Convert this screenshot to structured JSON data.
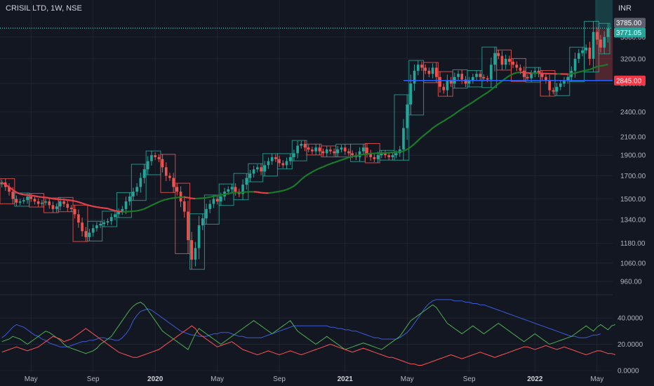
{
  "header": {
    "title": "CRISIL LTD, 1W, NSE",
    "currency": "INR"
  },
  "colors": {
    "background": "#131722",
    "grid": "#1f2431",
    "up": "#26a69a",
    "down": "#ef5350",
    "blue": "#2962ff",
    "green_ma": "#1b7a2a",
    "red_ma": "#e8404a",
    "sma_line": "#2196f3",
    "dmi_plus": "#4caf50",
    "dmi_minus": "#ff5252",
    "adx": "#3b5bdb"
  },
  "chart_data": [
    {
      "type": "candlestick",
      "title": "CRISIL LTD, 1W, NSE",
      "currency": "INR",
      "y_scale": "log",
      "ylim": [
        900,
        4000
      ],
      "y_ticks": [
        960,
        1060,
        1180,
        1340,
        1500,
        1700,
        1900,
        2100,
        2400,
        2800,
        3200,
        3600
      ],
      "y_tick_labels": [
        "960.00",
        "1060.00",
        "1180.00",
        "1340.00",
        "1500.00",
        "1700.00",
        "1900.00",
        "2100.00",
        "2400.00",
        "2800.00",
        "3200.00",
        "3600.00"
      ],
      "x_labels": [
        {
          "label": "May",
          "index": 8,
          "bold": false
        },
        {
          "label": "Sep",
          "index": 25,
          "bold": false
        },
        {
          "label": "2020",
          "index": 42,
          "bold": true
        },
        {
          "label": "May",
          "index": 59,
          "bold": false
        },
        {
          "label": "Sep",
          "index": 76,
          "bold": false
        },
        {
          "label": "2021",
          "index": 94,
          "bold": true
        },
        {
          "label": "May",
          "index": 111,
          "bold": false
        },
        {
          "label": "Sep",
          "index": 128,
          "bold": false
        },
        {
          "label": "2022",
          "index": 146,
          "bold": true
        },
        {
          "label": "May",
          "index": 163,
          "bold": false
        }
      ],
      "closes": [
        1640,
        1600,
        1560,
        1500,
        1470,
        1480,
        1490,
        1520,
        1500,
        1480,
        1460,
        1470,
        1480,
        1450,
        1420,
        1440,
        1480,
        1460,
        1430,
        1420,
        1380,
        1320,
        1260,
        1220,
        1250,
        1280,
        1300,
        1310,
        1320,
        1330,
        1360,
        1380,
        1400,
        1420,
        1480,
        1520,
        1560,
        1600,
        1680,
        1760,
        1840,
        1900,
        1880,
        1860,
        1780,
        1700,
        1680,
        1600,
        1560,
        1480,
        1400,
        1200,
        1080,
        1150,
        1300,
        1350,
        1420,
        1460,
        1500,
        1480,
        1520,
        1560,
        1580,
        1600,
        1560,
        1540,
        1620,
        1680,
        1720,
        1760,
        1780,
        1740,
        1800,
        1840,
        1880,
        1860,
        1820,
        1800,
        1840,
        1880,
        1920,
        2000,
        2020,
        1980,
        1960,
        1940,
        1980,
        1940,
        1920,
        1960,
        1940,
        1920,
        1960,
        1980,
        1940,
        1920,
        1900,
        1880,
        1940,
        1980,
        1920,
        1880,
        1860,
        1900,
        1920,
        1900,
        1880,
        1900,
        1920,
        1960,
        2200,
        2500,
        2800,
        3000,
        3100,
        3050,
        3000,
        2950,
        3050,
        2900,
        2750,
        2700,
        2850,
        2800,
        2900,
        2950,
        2860,
        2800,
        2850,
        2900,
        2950,
        2900,
        2880,
        2860,
        3100,
        3300,
        3250,
        3100,
        3200,
        3150,
        3100,
        3050,
        3000,
        2900,
        2880,
        2950,
        3000,
        2950,
        2900,
        2850,
        2700,
        2680,
        2750,
        2800,
        2850,
        2900,
        3000,
        3200,
        3300,
        3350,
        3400,
        3200,
        3700,
        3550,
        3400,
        3600,
        3771.05
      ],
      "price_lines": [
        {
          "label": "3785.00",
          "value": 3785,
          "color": "#5d606b",
          "style": "dotted"
        },
        {
          "label": "3771.05",
          "value": 3771.05,
          "color": "#26a69a",
          "style": "dotted"
        },
        {
          "label": "2845.00",
          "value": 2845,
          "color": "#2962ff",
          "style": "solid"
        }
      ],
      "horizontal_line": {
        "value": 2845,
        "start_index": 110,
        "color": "#2962ff"
      },
      "position": {
        "start_index": 163,
        "entry": 3771.05,
        "target": 4000,
        "stop": 2845
      },
      "moving_average": {
        "period": 30,
        "color_down": "#e8404a",
        "color_up": "#1b7a2a"
      }
    },
    {
      "type": "line",
      "title": "",
      "ylim": [
        0,
        55
      ],
      "y_ticks": [
        0,
        20,
        40
      ],
      "y_tick_labels": [
        "0.0000",
        "20.0000",
        "40.0000"
      ],
      "series": [
        {
          "color": "#3b5bdb",
          "values": [
            25,
            27,
            30,
            33,
            35,
            34,
            33,
            31,
            29,
            27,
            26,
            24,
            23,
            21,
            20,
            19,
            18,
            18,
            18,
            19,
            20,
            21,
            22,
            22,
            23,
            23,
            24,
            25,
            25,
            24,
            24,
            23,
            23,
            25,
            28,
            32,
            38,
            42,
            45,
            46,
            47,
            46,
            44,
            42,
            40,
            38,
            36,
            34,
            32,
            30,
            29,
            28,
            27,
            27,
            26,
            26,
            26,
            27,
            28,
            28,
            29,
            29,
            29,
            28,
            27,
            26,
            26,
            25,
            25,
            25,
            25,
            25,
            26,
            27,
            28,
            29,
            30,
            31,
            32,
            33,
            34,
            34,
            34,
            34,
            34,
            34,
            34,
            34,
            34,
            34,
            33,
            33,
            32,
            32,
            31,
            31,
            30,
            30,
            29,
            28,
            27,
            26,
            25,
            25,
            24,
            24,
            24,
            24,
            24,
            25,
            27,
            29,
            32,
            36,
            40,
            44,
            48,
            51,
            53,
            54,
            54,
            54,
            54,
            54,
            53,
            53,
            53,
            52,
            52,
            51,
            51,
            50,
            50,
            49,
            48,
            47,
            46,
            45,
            44,
            43,
            42,
            41,
            40,
            39,
            38,
            37,
            36,
            35,
            34,
            33,
            32,
            31,
            30,
            29,
            28,
            27,
            26,
            26,
            25,
            25,
            25,
            26,
            27,
            27,
            28
          ]
        },
        {
          "color": "#4caf50",
          "values": [
            22,
            23,
            24,
            26,
            25,
            24,
            22,
            20,
            22,
            24,
            26,
            28,
            30,
            29,
            27,
            25,
            23,
            20,
            18,
            17,
            16,
            15,
            14,
            13,
            14,
            15,
            17,
            20,
            22,
            24,
            26,
            30,
            34,
            38,
            42,
            46,
            49,
            51,
            52,
            50,
            46,
            42,
            38,
            34,
            30,
            28,
            26,
            24,
            22,
            20,
            18,
            16,
            22,
            28,
            32,
            30,
            28,
            26,
            24,
            22,
            20,
            22,
            24,
            26,
            28,
            30,
            32,
            34,
            36,
            38,
            36,
            34,
            32,
            30,
            28,
            30,
            32,
            34,
            36,
            38,
            34,
            30,
            28,
            26,
            24,
            22,
            20,
            22,
            24,
            26,
            24,
            22,
            20,
            18,
            16,
            17,
            18,
            19,
            20,
            21,
            20,
            19,
            18,
            17,
            16,
            18,
            20,
            22,
            24,
            26,
            30,
            34,
            38,
            40,
            42,
            44,
            46,
            48,
            50,
            48,
            44,
            40,
            36,
            34,
            32,
            30,
            28,
            30,
            32,
            34,
            32,
            30,
            28,
            30,
            32,
            34,
            36,
            34,
            32,
            30,
            28,
            26,
            24,
            22,
            24,
            26,
            28,
            26,
            24,
            22,
            20,
            21,
            22,
            23,
            24,
            25,
            26,
            28,
            30,
            32,
            34,
            32,
            30,
            33,
            35,
            33,
            31,
            34,
            35
          ]
        },
        {
          "color": "#ff5252",
          "values": [
            14,
            15,
            16,
            17,
            18,
            17,
            16,
            15,
            16,
            17,
            18,
            20,
            22,
            24,
            26,
            25,
            24,
            22,
            23,
            24,
            26,
            28,
            30,
            32,
            30,
            28,
            26,
            24,
            22,
            20,
            18,
            16,
            14,
            13,
            12,
            11,
            10,
            10,
            11,
            12,
            13,
            14,
            15,
            16,
            18,
            20,
            22,
            24,
            26,
            28,
            30,
            32,
            34,
            32,
            28,
            26,
            24,
            22,
            20,
            18,
            19,
            20,
            21,
            22,
            20,
            18,
            16,
            15,
            14,
            13,
            12,
            13,
            14,
            15,
            14,
            13,
            12,
            13,
            14,
            15,
            14,
            13,
            12,
            13,
            14,
            15,
            16,
            17,
            18,
            19,
            20,
            19,
            18,
            17,
            16,
            15,
            14,
            15,
            16,
            17,
            16,
            15,
            14,
            13,
            12,
            11,
            10,
            10,
            9,
            8,
            7,
            6,
            5,
            5,
            4,
            4,
            5,
            6,
            7,
            8,
            9,
            10,
            11,
            12,
            11,
            10,
            9,
            10,
            11,
            12,
            13,
            14,
            13,
            12,
            11,
            10,
            11,
            12,
            13,
            14,
            15,
            16,
            17,
            18,
            18,
            17,
            16,
            17,
            18,
            19,
            18,
            17,
            16,
            17,
            18,
            17,
            16,
            15,
            14,
            13,
            12,
            13,
            14,
            15,
            15,
            14,
            13,
            13,
            12
          ]
        }
      ]
    }
  ]
}
